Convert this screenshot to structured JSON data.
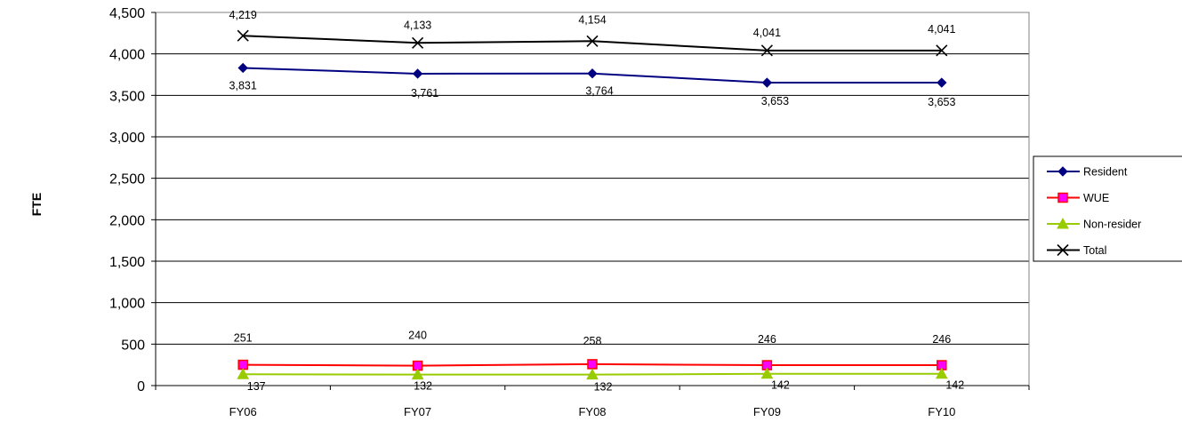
{
  "chart_data": {
    "type": "line",
    "title": "",
    "xlabel": "",
    "ylabel": "FTE",
    "ylim": [
      0,
      4500
    ],
    "ytick_step": 500,
    "grid": true,
    "legend_position": "right",
    "categories": [
      "FY06",
      "FY07",
      "FY08",
      "FY09",
      "FY10"
    ],
    "series": [
      {
        "name": "Resident",
        "values": [
          3831,
          3761,
          3764,
          3653,
          3653
        ],
        "labels": [
          "3,831",
          "3,761",
          "3,764",
          "3,653",
          "3,653"
        ],
        "color": "#000080",
        "marker": "diamond"
      },
      {
        "name": "WUE",
        "values": [
          251,
          240,
          258,
          246,
          246
        ],
        "labels": [
          "251",
          "240",
          "258",
          "246",
          "246"
        ],
        "color": "#ff0000",
        "marker": "square",
        "marker_fill": "#ff00ff"
      },
      {
        "name": "Non-resident",
        "legend_label": "Non-resider",
        "values": [
          137,
          132,
          132,
          142,
          142
        ],
        "labels": [
          "137",
          "132",
          "132",
          "142",
          "142"
        ],
        "color": "#99cc00",
        "marker": "triangle"
      },
      {
        "name": "Total",
        "values": [
          4219,
          4133,
          4154,
          4041,
          4041
        ],
        "labels": [
          "4,219",
          "4,133",
          "4,154",
          "4,041",
          "4,041"
        ],
        "color": "#000000",
        "marker": "x"
      }
    ]
  }
}
